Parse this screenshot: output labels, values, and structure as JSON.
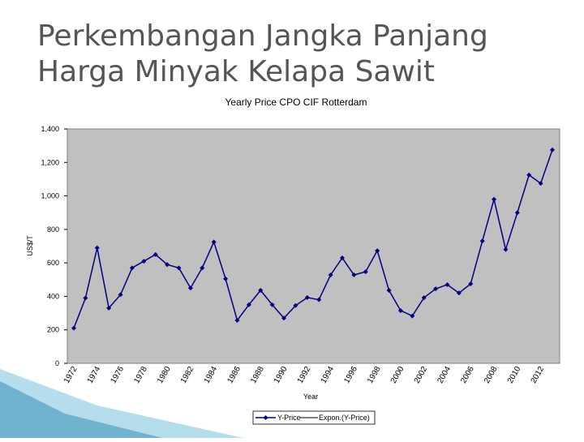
{
  "header": {
    "title_lines": [
      "Perkembangan Jangka Panjang",
      "Harga Minyak Kelapa Sawit"
    ]
  },
  "chart_data": {
    "type": "line",
    "title": "Yearly Price CPO CIF Rotterdam",
    "x_label": "Year",
    "y_label": "US$/T",
    "categories": [
      "1972",
      null,
      "1974",
      null,
      "1976",
      null,
      "1978",
      null,
      "1980",
      null,
      "1982",
      null,
      "1984",
      null,
      "1986",
      null,
      "1988",
      null,
      "1990",
      null,
      "1992",
      null,
      "1994",
      null,
      "1996",
      null,
      "1998",
      null,
      "2000",
      null,
      "2002",
      null,
      "2004",
      null,
      "2006",
      null,
      "2008",
      null,
      "2010",
      null,
      "2012",
      null
    ],
    "series": [
      {
        "name": "Y-Price",
        "color": "#000080",
        "values": [
          210,
          390,
          690,
          330,
          410,
          570,
          610,
          650,
          590,
          570,
          450,
          570,
          725,
          505,
          257,
          350,
          436,
          350,
          270,
          345,
          393,
          380,
          528,
          630,
          528,
          547,
          673,
          436,
          315,
          283,
          392,
          445,
          470,
          420,
          475,
          730,
          980,
          680,
          900,
          1125,
          1075,
          1275
        ]
      }
    ],
    "trendline": {
      "name": "Expon.(Y-Price)",
      "color": "#000000"
    },
    "ylim": [
      0,
      1400
    ],
    "yticks": [
      0,
      200,
      400,
      600,
      800,
      {
        "value": 1000,
        "label": "1,000"
      },
      {
        "value": 1200,
        "label": "1,200"
      },
      {
        "value": 1400,
        "label": "1,400"
      }
    ],
    "grid": false,
    "plot_background": "#c0c0c0"
  }
}
